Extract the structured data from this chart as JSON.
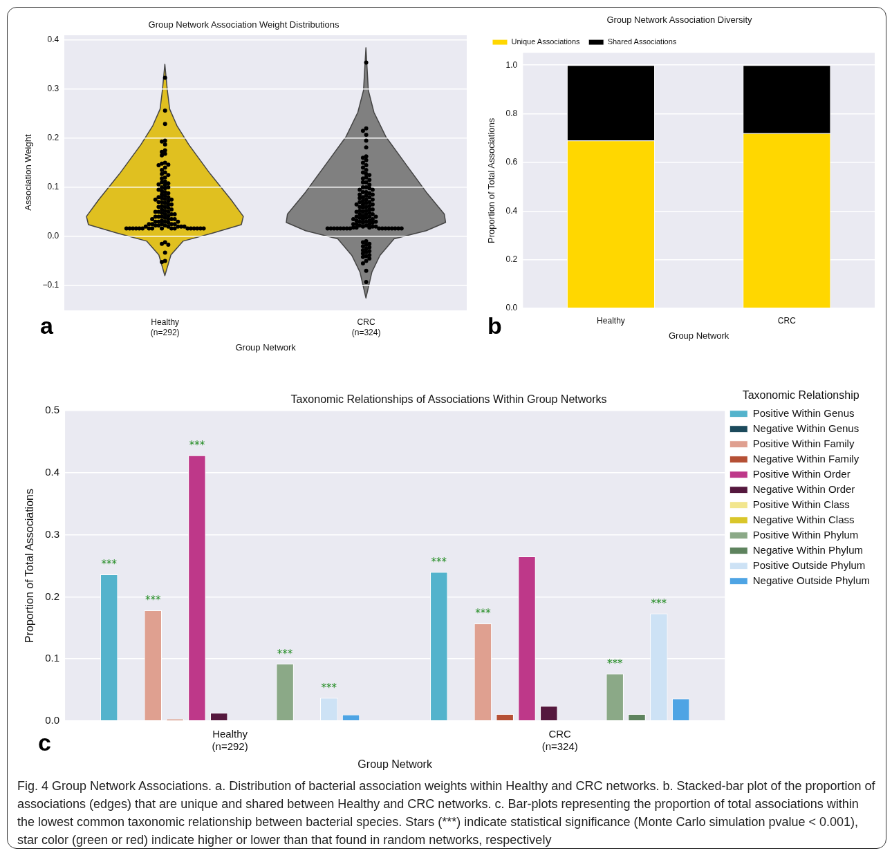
{
  "chart_data": [
    {
      "type": "scatter",
      "title": "Group Network Association Weight Distributions",
      "xlabel": "Group Network",
      "ylabel": "Association Weight",
      "categories": [
        "Healthy\n(n=292)",
        "CRC\n(n=324)"
      ],
      "ylim": [
        -0.15,
        0.41
      ],
      "yticks": [
        {
          "value": -0.1,
          "label": "−0.1"
        },
        {
          "value": 0,
          "label": "0.0"
        },
        0.1,
        0.2,
        0.3,
        0.4
      ],
      "grid": "y",
      "marker": "circle",
      "annotations": [
        "a"
      ],
      "series": [
        {
          "color": "#000000",
          "x": [
            "Healthy\n(n=292)",
            "Healthy\n(n=292)",
            "Healthy\n(n=292)",
            "Healthy\n(n=292)",
            "Healthy\n(n=292)",
            "Healthy\n(n=292)",
            "Healthy\n(n=292)",
            "Healthy\n(n=292)",
            "Healthy\n(n=292)",
            "Healthy\n(n=292)",
            "Healthy\n(n=292)",
            "Healthy\n(n=292)",
            "Healthy\n(n=292)",
            "Healthy\n(n=292)",
            "Healthy\n(n=292)",
            "Healthy\n(n=292)",
            "Healthy\n(n=292)",
            "Healthy\n(n=292)",
            "Healthy\n(n=292)",
            "Healthy\n(n=292)",
            "Healthy\n(n=292)",
            "Healthy\n(n=292)",
            "Healthy\n(n=292)",
            "Healthy\n(n=292)",
            "Healthy\n(n=292)",
            "Healthy\n(n=292)",
            "Healthy\n(n=292)",
            "Healthy\n(n=292)",
            "Healthy\n(n=292)",
            "Healthy\n(n=292)",
            "Healthy\n(n=292)",
            "Healthy\n(n=292)",
            "Healthy\n(n=292)",
            "Healthy\n(n=292)",
            "Healthy\n(n=292)",
            "Healthy\n(n=292)",
            "Healthy\n(n=292)",
            "Healthy\n(n=292)",
            "Healthy\n(n=292)",
            "Healthy\n(n=292)",
            "Healthy\n(n=292)",
            "Healthy\n(n=292)",
            "Healthy\n(n=292)",
            "Healthy\n(n=292)",
            "Healthy\n(n=292)",
            "Healthy\n(n=292)",
            "Healthy\n(n=292)",
            "Healthy\n(n=292)",
            "Healthy\n(n=292)",
            "Healthy\n(n=292)",
            "Healthy\n(n=292)",
            "Healthy\n(n=292)",
            "Healthy\n(n=292)",
            "Healthy\n(n=292)",
            "Healthy\n(n=292)",
            "Healthy\n(n=292)",
            "Healthy\n(n=292)",
            "Healthy\n(n=292)",
            "Healthy\n(n=292)",
            "Healthy\n(n=292)",
            "Healthy\n(n=292)",
            "Healthy\n(n=292)",
            "Healthy\n(n=292)",
            "Healthy\n(n=292)",
            "Healthy\n(n=292)",
            "Healthy\n(n=292)",
            "Healthy\n(n=292)",
            "Healthy\n(n=292)",
            "Healthy\n(n=292)",
            "Healthy\n(n=292)",
            "Healthy\n(n=292)",
            "Healthy\n(n=292)",
            "Healthy\n(n=292)",
            "Healthy\n(n=292)",
            "Healthy\n(n=292)",
            "Healthy\n(n=292)",
            "Healthy\n(n=292)",
            "Healthy\n(n=292)",
            "Healthy\n(n=292)",
            "Healthy\n(n=292)",
            "Healthy\n(n=292)",
            "Healthy\n(n=292)",
            "Healthy\n(n=292)",
            "Healthy\n(n=292)",
            "Healthy\n(n=292)",
            "Healthy\n(n=292)",
            "Healthy\n(n=292)",
            "Healthy\n(n=292)",
            "Healthy\n(n=292)",
            "Healthy\n(n=292)",
            "Healthy\n(n=292)",
            "Healthy\n(n=292)",
            "Healthy\n(n=292)",
            "Healthy\n(n=292)",
            "Healthy\n(n=292)",
            "Healthy\n(n=292)",
            "Healthy\n(n=292)",
            "Healthy\n(n=292)",
            "Healthy\n(n=292)",
            "Healthy\n(n=292)",
            "Healthy\n(n=292)",
            "Healthy\n(n=292)",
            "Healthy\n(n=292)",
            "Healthy\n(n=292)",
            "Healthy\n(n=292)",
            "Healthy\n(n=292)",
            "Healthy\n(n=292)",
            "Healthy\n(n=292)",
            "Healthy\n(n=292)",
            "Healthy\n(n=292)",
            "Healthy\n(n=292)",
            "Healthy\n(n=292)"
          ],
          "values": [
            0.323,
            0.256,
            0.229,
            0.195,
            0.193,
            0.187,
            0.175,
            0.172,
            0.168,
            0.165,
            0.15,
            0.148,
            0.146,
            0.145,
            0.14,
            0.135,
            0.13,
            0.127,
            0.125,
            0.12,
            0.118,
            0.112,
            0.11,
            0.108,
            0.106,
            0.105,
            0.1,
            0.1,
            0.098,
            0.095,
            0.092,
            0.09,
            0.088,
            0.085,
            0.083,
            0.08,
            0.08,
            0.078,
            0.076,
            0.075,
            0.075,
            0.072,
            0.07,
            0.07,
            0.068,
            0.065,
            0.065,
            0.062,
            0.06,
            0.06,
            0.058,
            0.055,
            0.055,
            0.052,
            0.05,
            0.05,
            0.05,
            0.048,
            0.045,
            0.045,
            0.045,
            0.042,
            0.04,
            0.04,
            0.04,
            0.038,
            0.035,
            0.035,
            0.035,
            0.035,
            0.032,
            0.03,
            0.03,
            0.03,
            0.03,
            0.028,
            0.025,
            0.025,
            0.025,
            0.025,
            0.025,
            0.022,
            0.022,
            0.022,
            0.02,
            0.02,
            0.02,
            0.02,
            0.02,
            0.016,
            0.016,
            0.016,
            0.016,
            0.016,
            0.016,
            0.016,
            0.016,
            0.016,
            0.016,
            0.016,
            0.016,
            0.016,
            0.016,
            0.016,
            0.016,
            0.016,
            -0.012,
            -0.015,
            -0.017,
            -0.033,
            -0.05,
            -0.052
          ]
        },
        {
          "color": "#000000",
          "x": [
            "CRC\n(n=324)",
            "CRC\n(n=324)",
            "CRC\n(n=324)",
            "CRC\n(n=324)",
            "CRC\n(n=324)",
            "CRC\n(n=324)",
            "CRC\n(n=324)",
            "CRC\n(n=324)",
            "CRC\n(n=324)",
            "CRC\n(n=324)",
            "CRC\n(n=324)",
            "CRC\n(n=324)",
            "CRC\n(n=324)",
            "CRC\n(n=324)",
            "CRC\n(n=324)",
            "CRC\n(n=324)",
            "CRC\n(n=324)",
            "CRC\n(n=324)",
            "CRC\n(n=324)",
            "CRC\n(n=324)",
            "CRC\n(n=324)",
            "CRC\n(n=324)",
            "CRC\n(n=324)",
            "CRC\n(n=324)",
            "CRC\n(n=324)",
            "CRC\n(n=324)",
            "CRC\n(n=324)",
            "CRC\n(n=324)",
            "CRC\n(n=324)",
            "CRC\n(n=324)",
            "CRC\n(n=324)",
            "CRC\n(n=324)",
            "CRC\n(n=324)",
            "CRC\n(n=324)",
            "CRC\n(n=324)",
            "CRC\n(n=324)",
            "CRC\n(n=324)",
            "CRC\n(n=324)",
            "CRC\n(n=324)",
            "CRC\n(n=324)",
            "CRC\n(n=324)",
            "CRC\n(n=324)",
            "CRC\n(n=324)",
            "CRC\n(n=324)",
            "CRC\n(n=324)",
            "CRC\n(n=324)",
            "CRC\n(n=324)",
            "CRC\n(n=324)",
            "CRC\n(n=324)",
            "CRC\n(n=324)",
            "CRC\n(n=324)",
            "CRC\n(n=324)",
            "CRC\n(n=324)",
            "CRC\n(n=324)",
            "CRC\n(n=324)",
            "CRC\n(n=324)",
            "CRC\n(n=324)",
            "CRC\n(n=324)",
            "CRC\n(n=324)",
            "CRC\n(n=324)",
            "CRC\n(n=324)",
            "CRC\n(n=324)",
            "CRC\n(n=324)",
            "CRC\n(n=324)",
            "CRC\n(n=324)",
            "CRC\n(n=324)",
            "CRC\n(n=324)",
            "CRC\n(n=324)",
            "CRC\n(n=324)",
            "CRC\n(n=324)",
            "CRC\n(n=324)",
            "CRC\n(n=324)",
            "CRC\n(n=324)",
            "CRC\n(n=324)",
            "CRC\n(n=324)",
            "CRC\n(n=324)",
            "CRC\n(n=324)",
            "CRC\n(n=324)",
            "CRC\n(n=324)",
            "CRC\n(n=324)",
            "CRC\n(n=324)",
            "CRC\n(n=324)",
            "CRC\n(n=324)",
            "CRC\n(n=324)",
            "CRC\n(n=324)",
            "CRC\n(n=324)",
            "CRC\n(n=324)",
            "CRC\n(n=324)",
            "CRC\n(n=324)",
            "CRC\n(n=324)",
            "CRC\n(n=324)",
            "CRC\n(n=324)",
            "CRC\n(n=324)",
            "CRC\n(n=324)",
            "CRC\n(n=324)",
            "CRC\n(n=324)",
            "CRC\n(n=324)",
            "CRC\n(n=324)",
            "CRC\n(n=324)",
            "CRC\n(n=324)",
            "CRC\n(n=324)",
            "CRC\n(n=324)",
            "CRC\n(n=324)",
            "CRC\n(n=324)",
            "CRC\n(n=324)",
            "CRC\n(n=324)",
            "CRC\n(n=324)",
            "CRC\n(n=324)",
            "CRC\n(n=324)",
            "CRC\n(n=324)",
            "CRC\n(n=324)",
            "CRC\n(n=324)",
            "CRC\n(n=324)",
            "CRC\n(n=324)",
            "CRC\n(n=324)",
            "CRC\n(n=324)",
            "CRC\n(n=324)",
            "CRC\n(n=324)",
            "CRC\n(n=324)",
            "CRC\n(n=324)",
            "CRC\n(n=324)"
          ],
          "values": [
            0.354,
            0.22,
            0.215,
            0.207,
            0.195,
            0.181,
            0.163,
            0.16,
            0.155,
            0.15,
            0.145,
            0.14,
            0.135,
            0.13,
            0.127,
            0.125,
            0.12,
            0.118,
            0.115,
            0.11,
            0.11,
            0.105,
            0.1,
            0.1,
            0.098,
            0.095,
            0.095,
            0.09,
            0.09,
            0.088,
            0.085,
            0.085,
            0.083,
            0.08,
            0.08,
            0.078,
            0.075,
            0.075,
            0.072,
            0.07,
            0.07,
            0.068,
            0.065,
            0.065,
            0.065,
            0.062,
            0.06,
            0.06,
            0.058,
            0.055,
            0.055,
            0.052,
            0.052,
            0.05,
            0.05,
            0.048,
            0.045,
            0.045,
            0.045,
            0.042,
            0.04,
            0.04,
            0.04,
            0.038,
            0.038,
            0.035,
            0.035,
            0.035,
            0.032,
            0.032,
            0.03,
            0.03,
            0.03,
            0.028,
            0.028,
            0.025,
            0.025,
            0.025,
            0.022,
            0.022,
            0.02,
            0.02,
            0.02,
            0.018,
            0.018,
            0.018,
            0.016,
            0.016,
            0.016,
            0.016,
            0.016,
            0.016,
            0.016,
            0.016,
            0.016,
            0.016,
            0.016,
            0.016,
            0.016,
            0.016,
            0.016,
            0.016,
            -0.01,
            -0.012,
            -0.015,
            -0.017,
            -0.02,
            -0.022,
            -0.025,
            -0.028,
            -0.03,
            -0.032,
            -0.035,
            -0.038,
            -0.04,
            -0.042,
            -0.045,
            -0.05,
            -0.055,
            -0.07,
            -0.093
          ]
        }
      ]
    },
    {
      "type": "bar",
      "stacked": true,
      "title": "Group Network Association Diversity",
      "xlabel": "Group Network",
      "ylabel": "Proportion of Total Associations",
      "categories": [
        "Healthy",
        "CRC"
      ],
      "series": [
        {
          "name": "Unique Associations",
          "color": "#ffd700",
          "values": [
            0.69,
            0.72
          ]
        },
        {
          "name": "Shared Associations",
          "color": "#000000",
          "values": [
            0.31,
            0.28
          ]
        }
      ],
      "ylim": [
        0,
        1.05
      ],
      "yticks": [
        {
          "value": 0,
          "label": "0.0"
        },
        0.2,
        0.4,
        0.6,
        0.8,
        {
          "value": 1,
          "label": "1.0"
        }
      ],
      "grid": "y",
      "legend": "top",
      "annotations": [
        "b"
      ]
    },
    {
      "type": "bar",
      "title": "Taxonomic Relationships of Associations Within Group Networks",
      "xlabel": "Group Network",
      "ylabel": "Proportion of Total Associations",
      "legend_title": "Taxonomic Relationship",
      "categories": [
        "Healthy\n(n=292)",
        "CRC\n(n=324)"
      ],
      "series": [
        {
          "name": "Positive Within Genus",
          "color": "#53b3cc",
          "values": [
            0.236,
            0.24
          ],
          "value_labels": [
            "***",
            "***"
          ]
        },
        {
          "name": "Negative Within Genus",
          "color": "#1c4a5c",
          "values": [
            0,
            0
          ]
        },
        {
          "name": "Positive Within Family",
          "color": "#dfa090",
          "values": [
            0.178,
            0.157
          ],
          "value_labels": [
            "***",
            "***"
          ]
        },
        {
          "name": "Negative Within Family",
          "color": "#b55035",
          "values": [
            0.003,
            0.011
          ]
        },
        {
          "name": "Positive Within Order",
          "color": "#be3889",
          "values": [
            0.428,
            0.265
          ],
          "value_labels": [
            "***",
            null
          ]
        },
        {
          "name": "Negative Within Order",
          "color": "#55183e",
          "values": [
            0.013,
            0.024
          ]
        },
        {
          "name": "Positive Within Class",
          "color": "#f2e68e",
          "values": [
            0,
            0
          ]
        },
        {
          "name": "Negative Within Class",
          "color": "#d9c62a",
          "values": [
            0,
            0
          ]
        },
        {
          "name": "Positive Within Phylum",
          "color": "#8ba987",
          "values": [
            0.092,
            0.076
          ],
          "value_labels": [
            "***",
            "***"
          ]
        },
        {
          "name": "Negative Within Phylum",
          "color": "#5e835e",
          "values": [
            0,
            0.011
          ]
        },
        {
          "name": "Positive Outside Phylum",
          "color": "#cde2f5",
          "values": [
            0.037,
            0.173
          ],
          "value_labels": [
            "***",
            "***"
          ]
        },
        {
          "name": "Negative Outside Phylum",
          "color": "#4ea4e4",
          "values": [
            0.01,
            0.036
          ]
        }
      ],
      "ylim": [
        0,
        0.5
      ],
      "yticks": [
        {
          "value": 0,
          "label": "0.0"
        },
        0.1,
        0.2,
        0.3,
        0.4,
        0.5
      ],
      "grid": "y",
      "legend": "right",
      "annotations": [
        "c",
        "Fig. 4 Group Network Associations. a. Distribution of bacterial association weights within Healthy and CRC networks. b. Stacked-bar plot of the proportion of associations (edges) that are unique and shared between Healthy and CRC networks. c. Bar-plots representing the proportion of total associations within the lowest common taxonomic relationship between bacterial species. Stars (***) indicate statistical significance (Monte Carlo simulation pvalue < 0.001), star color (green or red) indicate higher or lower than that found in random networks, respectively"
      ]
    }
  ]
}
